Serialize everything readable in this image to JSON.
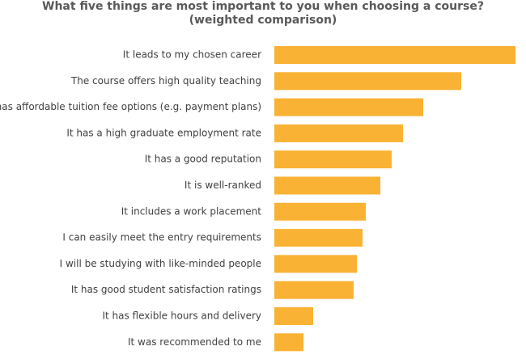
{
  "chart_data": {
    "type": "bar",
    "orientation": "horizontal",
    "title": "What five things are most important to you when choosing a course? (weighted comparison)",
    "categories": [
      "It leads to my chosen career",
      "The course offers high quality teaching",
      "It has affordable tuition fee options (e.g. payment plans)",
      "It has a high graduate employment rate",
      "It has a good reputation",
      "It is well-ranked",
      "It  includes a work placement",
      "I can easily meet the entry requirements",
      "I will be studying with like-minded people",
      "It has good student satisfaction ratings",
      "It has flexible hours and delivery",
      "It was recommended to me"
    ],
    "values": [
      298,
      231,
      184,
      159,
      145,
      131,
      113,
      109,
      102,
      98,
      48,
      36
    ],
    "color": "#f9b233"
  }
}
